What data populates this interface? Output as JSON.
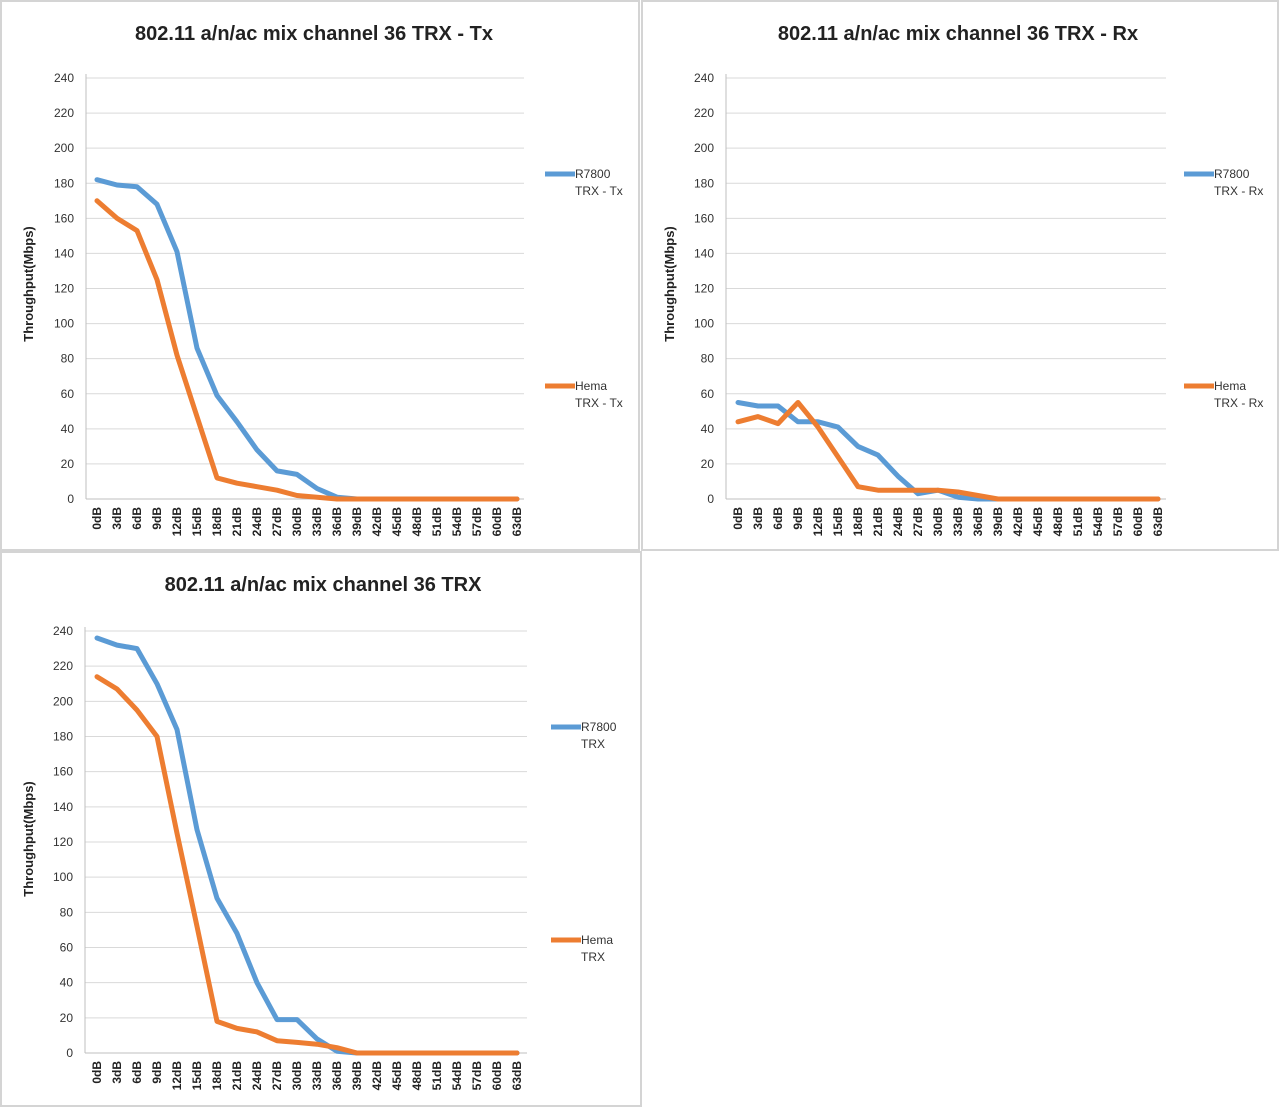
{
  "chart_data": [
    {
      "type": "line",
      "title": "802.11 a/n/ac mix channel 36 TRX - Tx",
      "ylabel": "Throughput(Mbps)",
      "xlabel": "",
      "ylim": [
        0,
        240
      ],
      "yticks": [
        0,
        20,
        40,
        60,
        80,
        100,
        120,
        140,
        160,
        180,
        200,
        220,
        240
      ],
      "grid": true,
      "legend_position": "right",
      "categories": [
        "0dB",
        "3dB",
        "6dB",
        "9dB",
        "12dB",
        "15dB",
        "18dB",
        "21dB",
        "24dB",
        "27dB",
        "30dB",
        "33dB",
        "36dB",
        "39dB",
        "42dB",
        "45dB",
        "48dB",
        "51dB",
        "54dB",
        "57dB",
        "60dB",
        "63dB"
      ],
      "series": [
        {
          "name": "R7800",
          "legend_lines": [
            "R7800",
            "TRX - Tx"
          ],
          "color": "#5b9bd5",
          "values": [
            182,
            179,
            178,
            168,
            141,
            86,
            59,
            44,
            28,
            16,
            14,
            6,
            1,
            0,
            0,
            0,
            0,
            0,
            0,
            0,
            0,
            0
          ]
        },
        {
          "name": "Hema",
          "legend_lines": [
            "Hema",
            "TRX - Tx"
          ],
          "color": "#ed7d31",
          "values": [
            170,
            160,
            153,
            125,
            82,
            47,
            12,
            9,
            7,
            5,
            2,
            1,
            0,
            0,
            0,
            0,
            0,
            0,
            0,
            0,
            0,
            0
          ]
        }
      ]
    },
    {
      "type": "line",
      "title": "802.11 a/n/ac mix channel 36 TRX - Rx",
      "ylabel": "Throughput(Mbps)",
      "xlabel": "",
      "ylim": [
        0,
        240
      ],
      "yticks": [
        0,
        20,
        40,
        60,
        80,
        100,
        120,
        140,
        160,
        180,
        200,
        220,
        240
      ],
      "grid": true,
      "legend_position": "right",
      "categories": [
        "0dB",
        "3dB",
        "6dB",
        "9dB",
        "12dB",
        "15dB",
        "18dB",
        "21dB",
        "24dB",
        "27dB",
        "30dB",
        "33dB",
        "36dB",
        "39dB",
        "42dB",
        "45dB",
        "48dB",
        "51dB",
        "54dB",
        "57dB",
        "60dB",
        "63dB"
      ],
      "series": [
        {
          "name": "R7800",
          "legend_lines": [
            "R7800",
            "TRX - Rx"
          ],
          "color": "#5b9bd5",
          "values": [
            55,
            53,
            53,
            44,
            44,
            41,
            30,
            25,
            13,
            3,
            5,
            1,
            0,
            0,
            0,
            0,
            0,
            0,
            0,
            0,
            0,
            0
          ]
        },
        {
          "name": "Hema",
          "legend_lines": [
            "Hema",
            "TRX - Rx"
          ],
          "color": "#ed7d31",
          "values": [
            44,
            47,
            43,
            55,
            41,
            24,
            7,
            5,
            5,
            5,
            5,
            4,
            2,
            0,
            0,
            0,
            0,
            0,
            0,
            0,
            0,
            0
          ]
        }
      ]
    },
    {
      "type": "line",
      "title": "802.11 a/n/ac mix channel 36 TRX",
      "ylabel": "Throughput(Mbps)",
      "xlabel": "",
      "ylim": [
        0,
        240
      ],
      "yticks": [
        0,
        20,
        40,
        60,
        80,
        100,
        120,
        140,
        160,
        180,
        200,
        220,
        240
      ],
      "grid": true,
      "legend_position": "right",
      "categories": [
        "0dB",
        "3dB",
        "6dB",
        "9dB",
        "12dB",
        "15dB",
        "18dB",
        "21dB",
        "24dB",
        "27dB",
        "30dB",
        "33dB",
        "36dB",
        "39dB",
        "42dB",
        "45dB",
        "48dB",
        "51dB",
        "54dB",
        "57dB",
        "60dB",
        "63dB"
      ],
      "series": [
        {
          "name": "R7800",
          "legend_lines": [
            "R7800",
            "TRX"
          ],
          "color": "#5b9bd5",
          "values": [
            236,
            232,
            230,
            210,
            184,
            127,
            88,
            68,
            40,
            19,
            19,
            8,
            1,
            0,
            0,
            0,
            0,
            0,
            0,
            0,
            0,
            0
          ]
        },
        {
          "name": "Hema",
          "legend_lines": [
            "Hema",
            "TRX"
          ],
          "color": "#ed7d31",
          "values": [
            214,
            207,
            195,
            180,
            125,
            72,
            18,
            14,
            12,
            7,
            6,
            5,
            3,
            0,
            0,
            0,
            0,
            0,
            0,
            0,
            0,
            0
          ]
        }
      ]
    }
  ]
}
